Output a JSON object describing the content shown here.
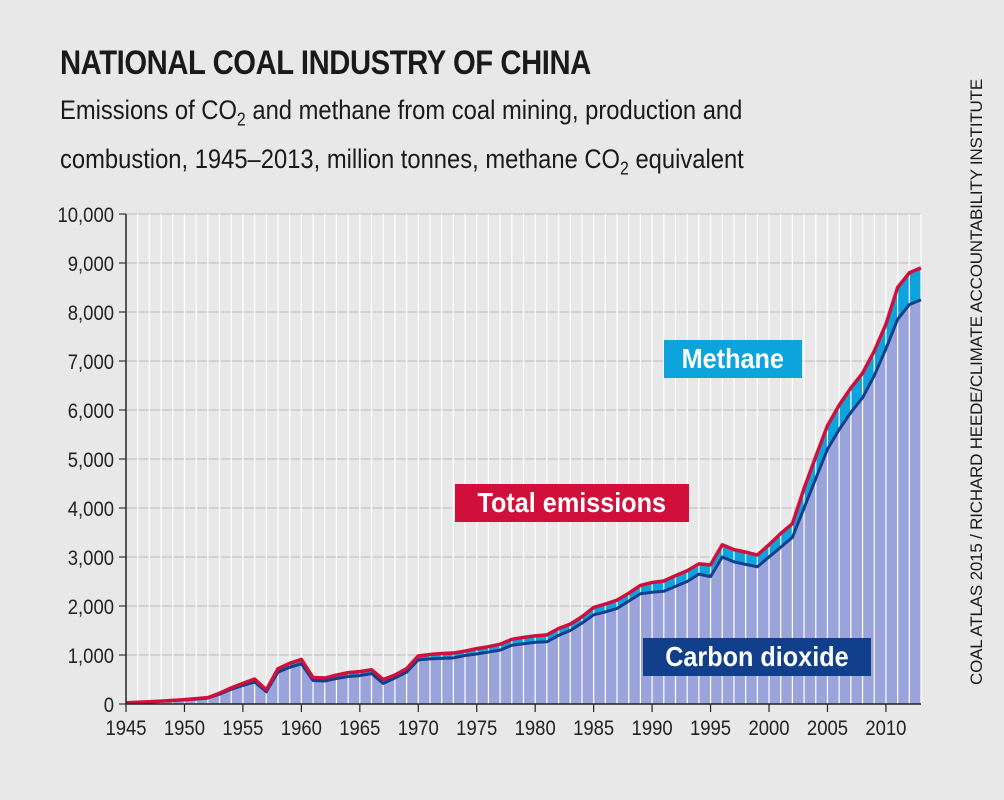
{
  "title": "NATIONAL COAL INDUSTRY OF CHINA",
  "subtitle": {
    "line1_a": "Emissions of CO",
    "line1_sub": "2",
    "line1_b": " and methane from coal mining, production and",
    "line2_a": "combustion, 1945–2013, million tonnes, methane CO",
    "line2_sub": "2",
    "line2_b": " equivalent"
  },
  "source": "COAL ATLAS 2015 / RICHARD HEEDE/CLIMATE ACCOUNTABILITY INSTITUTE",
  "labels": {
    "methane": "Methane",
    "total": "Total emissions",
    "co2": "Carbon dioxide"
  },
  "colors": {
    "background": "#e8e8e8",
    "co2_fill": "#9aa4da",
    "co2_line": "#123f8c",
    "methane_fill": "#0da3dc",
    "total_line": "#d0103a",
    "bar_separator": "#ffffff"
  },
  "chart_data": {
    "type": "area",
    "title": "NATIONAL COAL INDUSTRY OF CHINA",
    "xlabel": "",
    "ylabel": "",
    "xlim": [
      1945,
      2013
    ],
    "ylim": [
      0,
      10000
    ],
    "yticks": [
      0,
      1000,
      2000,
      3000,
      4000,
      5000,
      6000,
      7000,
      8000,
      9000,
      10000
    ],
    "ytick_labels": [
      "0",
      "1,000",
      "2,000",
      "3,000",
      "4,000",
      "5,000",
      "6,000",
      "7,000",
      "8,000",
      "9,000",
      "10,000"
    ],
    "xticks": [
      1945,
      1950,
      1955,
      1960,
      1965,
      1970,
      1975,
      1980,
      1985,
      1990,
      1995,
      2000,
      2005,
      2010
    ],
    "grid": true,
    "x": [
      1945,
      1946,
      1947,
      1948,
      1949,
      1950,
      1951,
      1952,
      1953,
      1954,
      1955,
      1956,
      1957,
      1958,
      1959,
      1960,
      1961,
      1962,
      1963,
      1964,
      1965,
      1966,
      1967,
      1968,
      1969,
      1970,
      1971,
      1972,
      1973,
      1974,
      1975,
      1976,
      1977,
      1978,
      1979,
      1980,
      1981,
      1982,
      1983,
      1984,
      1985,
      1986,
      1987,
      1988,
      1989,
      1990,
      1991,
      1992,
      1993,
      1994,
      1995,
      1996,
      1997,
      1998,
      1999,
      2000,
      2001,
      2002,
      2003,
      2004,
      2005,
      2006,
      2007,
      2008,
      2009,
      2010,
      2011,
      2012,
      2013
    ],
    "series": [
      {
        "name": "Carbon dioxide",
        "values": [
          20,
          30,
          40,
          55,
          70,
          85,
          100,
          120,
          200,
          300,
          380,
          450,
          250,
          650,
          750,
          820,
          480,
          470,
          520,
          560,
          580,
          620,
          420,
          530,
          650,
          900,
          920,
          930,
          940,
          990,
          1020,
          1060,
          1100,
          1200,
          1230,
          1260,
          1270,
          1400,
          1500,
          1650,
          1820,
          1880,
          1950,
          2100,
          2250,
          2280,
          2300,
          2400,
          2500,
          2650,
          2600,
          3000,
          2900,
          2850,
          2800,
          3000,
          3200,
          3400,
          4000,
          4600,
          5200,
          5600,
          5950,
          6250,
          6700,
          7250,
          7850,
          8150,
          8250
        ]
      },
      {
        "name": "Methane",
        "values": [
          5,
          5,
          5,
          5,
          5,
          5,
          10,
          10,
          20,
          30,
          40,
          60,
          40,
          70,
          80,
          90,
          60,
          60,
          70,
          80,
          80,
          80,
          80,
          60,
          70,
          80,
          90,
          100,
          100,
          90,
          110,
          110,
          120,
          120,
          130,
          130,
          140,
          140,
          130,
          130,
          150,
          160,
          170,
          160,
          170,
          200,
          210,
          220,
          220,
          210,
          240,
          250,
          250,
          250,
          240,
          250,
          280,
          280,
          400,
          450,
          480,
          500,
          500,
          500,
          500,
          500,
          650,
          650,
          650
        ]
      }
    ],
    "total_emissions": [
      25,
      35,
      45,
      60,
      75,
      90,
      110,
      130,
      220,
      330,
      420,
      510,
      290,
      720,
      830,
      910,
      540,
      530,
      590,
      640,
      660,
      700,
      500,
      590,
      720,
      980,
      1010,
      1030,
      1040,
      1080,
      1130,
      1170,
      1220,
      1320,
      1360,
      1390,
      1410,
      1540,
      1630,
      1780,
      1970,
      2040,
      2120,
      2260,
      2420,
      2480,
      2510,
      2620,
      2720,
      2860,
      2840,
      3250,
      3150,
      3100,
      3040,
      3250,
      3480,
      3680,
      4400,
      5050,
      5680,
      6100,
      6450,
      6750,
      7200,
      7750,
      8500,
      8800,
      8900
    ]
  }
}
